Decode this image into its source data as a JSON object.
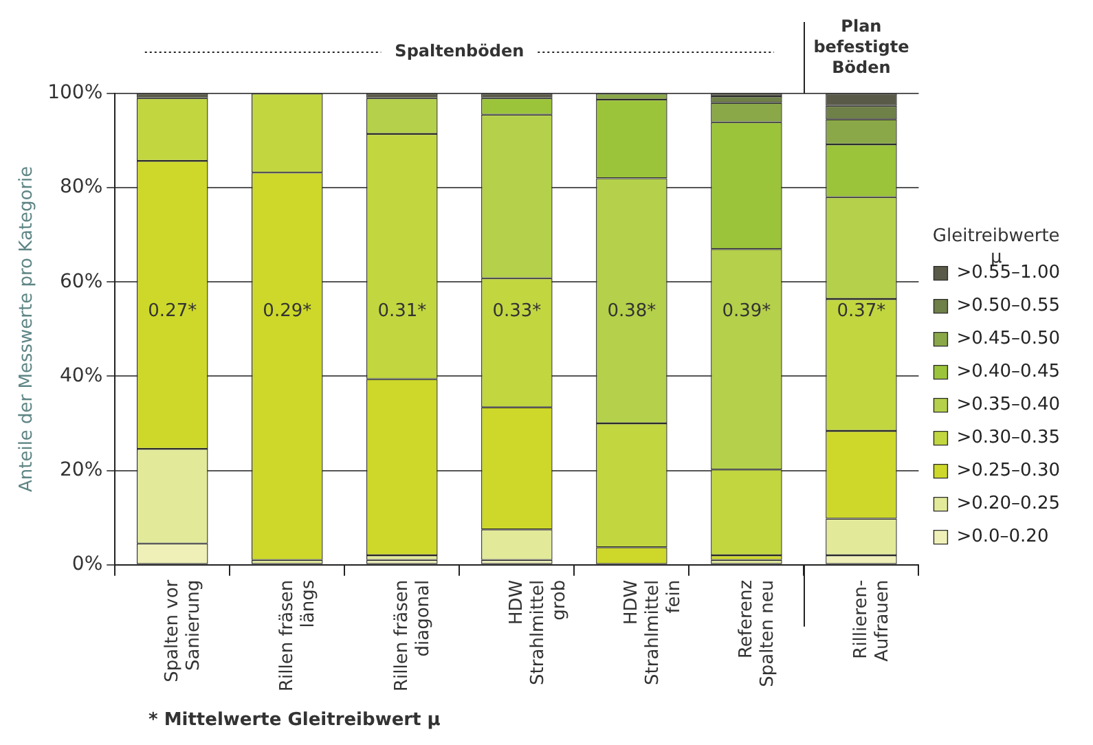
{
  "chart_data": {
    "type": "bar",
    "stacked": true,
    "ylabel": "Anteile der Messwerte pro Kategorie",
    "legend_title": "Gleitreibwerte μ",
    "legend": "right",
    "categories": [
      "Spalten vor Sanierung",
      "Rillen fräsen längs",
      "Rillen fräsen diagonal",
      "HDW Strahlmittel grob",
      "HDW Strahlmittel fein",
      "Referenz Spalten neu",
      "Rillieren-Aufrauen"
    ],
    "series": [
      {
        "name": ">0.0–0.20",
        "color": "#eef0b8",
        "values": [
          4.5,
          0,
          1,
          1,
          0,
          0,
          2
        ]
      },
      {
        "name": ">0.20–0.25",
        "color": "#e2ea9a",
        "values": [
          20.1,
          1,
          1,
          6.5,
          0,
          1,
          7.8
        ]
      },
      {
        "name": ">0.25–0.30",
        "color": "#cdd82a",
        "values": [
          61.1,
          82.2,
          37.4,
          25.9,
          3.7,
          1,
          18.6
        ]
      },
      {
        "name": ">0.30–0.35",
        "color": "#c2d640",
        "values": [
          13.3,
          16.8,
          52,
          27.4,
          26.3,
          18.2,
          28
        ]
      },
      {
        "name": ">0.35–0.40",
        "color": "#b5d04a",
        "values": [
          0,
          0,
          7.6,
          34.7,
          52,
          46.8,
          21.6
        ]
      },
      {
        "name": ">0.40–0.45",
        "color": "#9cc43a",
        "values": [
          0,
          0,
          0,
          3.5,
          16.7,
          26.9,
          11.2
        ]
      },
      {
        "name": ">0.45–0.50",
        "color": "#8aa848",
        "values": [
          0,
          0,
          0,
          0,
          1.3,
          4.1,
          5.3
        ]
      },
      {
        "name": ">0.50–0.55",
        "color": "#6f8048",
        "values": [
          0,
          0,
          0,
          0,
          0,
          1.4,
          2.9
        ]
      },
      {
        "name": ">0.55–1.00",
        "color": "#5a5a48",
        "values": [
          1,
          0,
          1,
          1,
          0,
          0.6,
          2.6
        ]
      }
    ],
    "ylim": [
      0,
      100
    ],
    "yticks": [
      {
        "value": 0,
        "label": "0%"
      },
      {
        "value": 20,
        "label": "20%"
      },
      {
        "value": 40,
        "label": "40%"
      },
      {
        "value": 60,
        "label": "60%"
      },
      {
        "value": 80,
        "label": "80%"
      },
      {
        "value": 100,
        "label": "100%"
      }
    ],
    "grid": "y",
    "annotations": [
      "0.27*",
      "0.29*",
      "0.31*",
      "0.33*",
      "0.38*",
      "0.39*",
      "0.37*",
      "Spaltenböden",
      "Plan befestigte Böden",
      "* Mittelwerte Gleitreibwert μ"
    ]
  }
}
